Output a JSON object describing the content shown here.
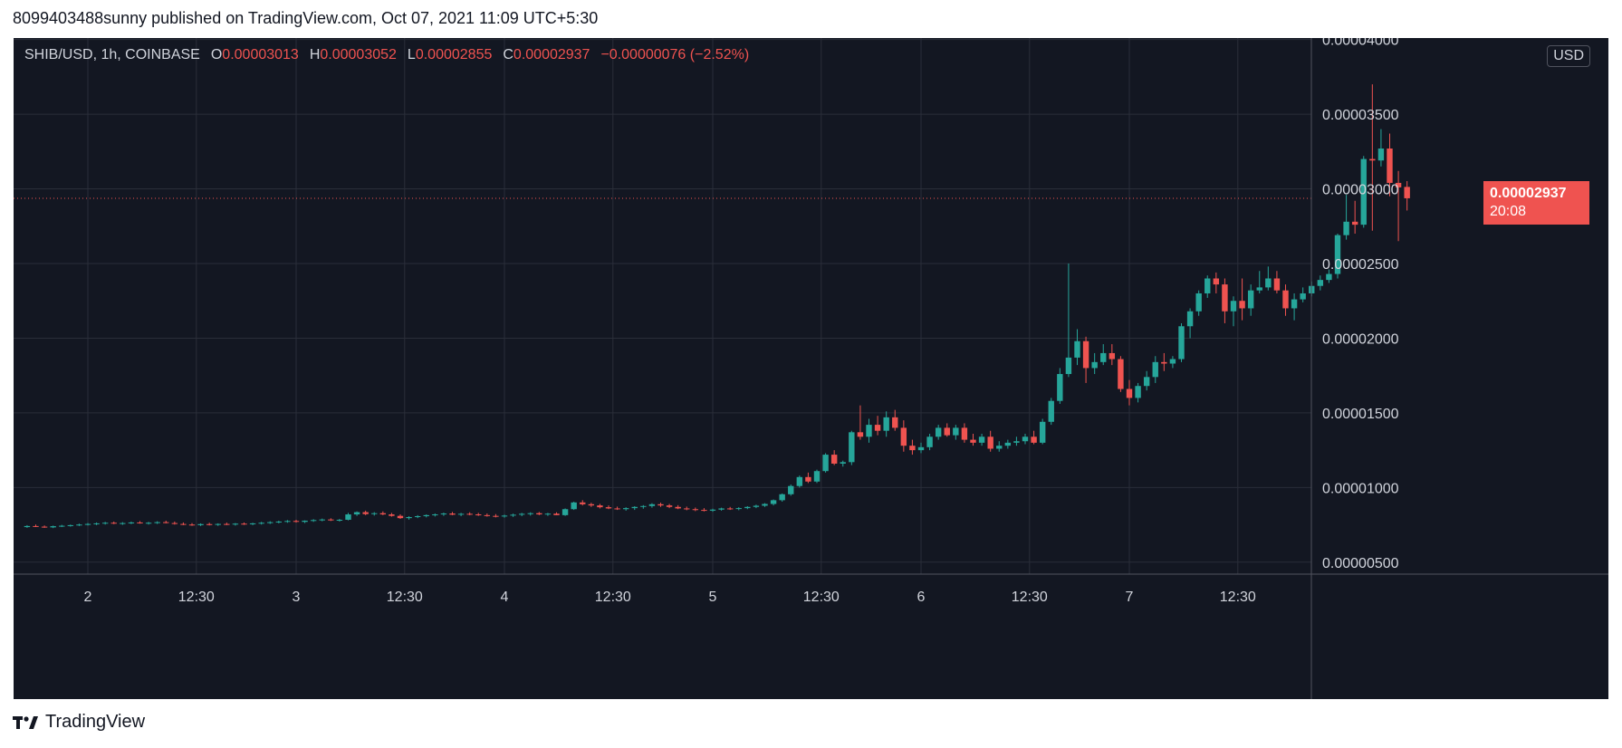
{
  "caption": "8099403488sunny published on TradingView.com, Oct 07, 2021 11:09 UTC+5:30",
  "footer": "TradingView",
  "legend": {
    "symbol": "SHIB/USD, 1h, COINBASE",
    "open_label": "O",
    "open": "0.00003013",
    "high_label": "H",
    "high": "0.00003052",
    "low_label": "L",
    "low": "0.00002855",
    "close_label": "C",
    "close": "0.00002937",
    "change": "−0.00000076 (−2.52%)"
  },
  "currency": "USD",
  "last_price": {
    "price": "0.00002937",
    "countdown": "20:08"
  },
  "colors": {
    "background": "#131722",
    "grid": "#2a2e39",
    "up": "#26a69a",
    "down": "#ef5350",
    "axis_text": "#d1d4dc"
  },
  "chart_data": {
    "type": "candlestick",
    "interval": "1h",
    "price_axis": {
      "range": [
        4.2e-06,
        4.01e-05
      ],
      "ticks": [
        5e-06,
        1e-05,
        1.5e-05,
        2e-05,
        2.5e-05,
        3e-05,
        3.5e-05,
        4e-05
      ],
      "tick_labels": [
        "0.00000500",
        "0.00001000",
        "0.00001500",
        "0.00002000",
        "0.00002500",
        "0.00003000",
        "0.00003500",
        "0.00004000"
      ]
    },
    "time_axis": {
      "tick_labels": [
        "2",
        "12:30",
        "3",
        "12:30",
        "4",
        "12:30",
        "5",
        "12:30",
        "6",
        "12:30",
        "7",
        "12:30"
      ],
      "tick_hours": [
        0,
        12.5,
        24,
        36.5,
        48,
        60.5,
        72,
        84.5,
        96,
        108.5,
        120,
        132.5
      ],
      "hours_before_first_tick": 7
    },
    "last_price": 2.937e-05,
    "candles_per_hour_ohlc": [
      [
        7.35e-06,
        7.48e-06,
        7.3e-06,
        7.42e-06
      ],
      [
        7.42e-06,
        7.52e-06,
        7.35e-06,
        7.38e-06
      ],
      [
        7.38e-06,
        7.46e-06,
        7.3e-06,
        7.33e-06
      ],
      [
        7.33e-06,
        7.45e-06,
        7.28e-06,
        7.41e-06
      ],
      [
        7.41e-06,
        7.5e-06,
        7.35e-06,
        7.44e-06
      ],
      [
        7.44e-06,
        7.52e-06,
        7.38e-06,
        7.48e-06
      ],
      [
        7.48e-06,
        7.58e-06,
        7.42e-06,
        7.52e-06
      ],
      [
        7.52e-06,
        7.62e-06,
        7.46e-06,
        7.56e-06
      ],
      [
        7.56e-06,
        7.66e-06,
        7.48e-06,
        7.6e-06
      ],
      [
        7.6e-06,
        7.7e-06,
        7.52e-06,
        7.64e-06
      ],
      [
        7.64e-06,
        7.72e-06,
        7.55e-06,
        7.58e-06
      ],
      [
        7.58e-06,
        7.68e-06,
        7.5e-06,
        7.62e-06
      ],
      [
        7.62e-06,
        7.72e-06,
        7.55e-06,
        7.66e-06
      ],
      [
        7.66e-06,
        7.75e-06,
        7.58e-06,
        7.6e-06
      ],
      [
        7.6e-06,
        7.7e-06,
        7.52e-06,
        7.64e-06
      ],
      [
        7.64e-06,
        7.74e-06,
        7.56e-06,
        7.68e-06
      ],
      [
        7.68e-06,
        7.78e-06,
        7.6e-06,
        7.62e-06
      ],
      [
        7.62e-06,
        7.72e-06,
        7.52e-06,
        7.56e-06
      ],
      [
        7.56e-06,
        7.66e-06,
        7.48e-06,
        7.52e-06
      ],
      [
        7.52e-06,
        7.62e-06,
        7.44e-06,
        7.48e-06
      ],
      [
        7.48e-06,
        7.6e-06,
        7.42e-06,
        7.55e-06
      ],
      [
        7.55e-06,
        7.64e-06,
        7.46e-06,
        7.5e-06
      ],
      [
        7.5e-06,
        7.6e-06,
        7.43e-06,
        7.56e-06
      ],
      [
        7.56e-06,
        7.65e-06,
        7.48e-06,
        7.52e-06
      ],
      [
        7.52e-06,
        7.62e-06,
        7.45e-06,
        7.58e-06
      ],
      [
        7.58e-06,
        7.66e-06,
        7.5e-06,
        7.54e-06
      ],
      [
        7.54e-06,
        7.64e-06,
        7.48e-06,
        7.6e-06
      ],
      [
        7.6e-06,
        7.7e-06,
        7.52e-06,
        7.64e-06
      ],
      [
        7.64e-06,
        7.74e-06,
        7.56e-06,
        7.68e-06
      ],
      [
        7.68e-06,
        7.78e-06,
        7.6e-06,
        7.72e-06
      ],
      [
        7.72e-06,
        7.82e-06,
        7.64e-06,
        7.76e-06
      ],
      [
        7.76e-06,
        7.84e-06,
        7.66e-06,
        7.7e-06
      ],
      [
        7.7e-06,
        7.8e-06,
        7.62e-06,
        7.78e-06
      ],
      [
        7.78e-06,
        7.88e-06,
        7.7e-06,
        7.82e-06
      ],
      [
        7.82e-06,
        7.92e-06,
        7.74e-06,
        7.86e-06
      ],
      [
        7.86e-06,
        7.94e-06,
        7.76e-06,
        7.8e-06
      ],
      [
        7.8e-06,
        7.9e-06,
        7.72e-06,
        7.84e-06
      ],
      [
        7.84e-06,
        8.3e-06,
        7.8e-06,
        8.2e-06
      ],
      [
        8.2e-06,
        8.4e-06,
        8.1e-06,
        8.35e-06
      ],
      [
        8.35e-06,
        8.45e-06,
        8.15e-06,
        8.22e-06
      ],
      [
        8.22e-06,
        8.35e-06,
        8.12e-06,
        8.28e-06
      ],
      [
        8.28e-06,
        8.4e-06,
        8.15e-06,
        8.2e-06
      ],
      [
        8.2e-06,
        8.3e-06,
        8.05e-06,
        8.1e-06
      ],
      [
        8.1e-06,
        8.2e-06,
        7.9e-06,
        7.95e-06
      ],
      [
        7.95e-06,
        8.08e-06,
        7.85e-06,
        8.02e-06
      ],
      [
        8.02e-06,
        8.15e-06,
        7.95e-06,
        8.08e-06
      ],
      [
        8.08e-06,
        8.2e-06,
        8e-06,
        8.15e-06
      ],
      [
        8.15e-06,
        8.26e-06,
        8.06e-06,
        8.2e-06
      ],
      [
        8.2e-06,
        8.32e-06,
        8.1e-06,
        8.26e-06
      ],
      [
        8.26e-06,
        8.36e-06,
        8.15e-06,
        8.18e-06
      ],
      [
        8.18e-06,
        8.3e-06,
        8.08e-06,
        8.24e-06
      ],
      [
        8.24e-06,
        8.34e-06,
        8.14e-06,
        8.2e-06
      ],
      [
        8.2e-06,
        8.3e-06,
        8.1e-06,
        8.15e-06
      ],
      [
        8.15e-06,
        8.26e-06,
        8.05e-06,
        8.1e-06
      ],
      [
        8.1e-06,
        8.22e-06,
        8e-06,
        8.06e-06
      ],
      [
        8.06e-06,
        8.18e-06,
        7.98e-06,
        8.12e-06
      ],
      [
        8.12e-06,
        8.25e-06,
        8.03e-06,
        8.18e-06
      ],
      [
        8.18e-06,
        8.3e-06,
        8.08e-06,
        8.24e-06
      ],
      [
        8.24e-06,
        8.34e-06,
        8.12e-06,
        8.28e-06
      ],
      [
        8.28e-06,
        8.36e-06,
        8.15e-06,
        8.2e-06
      ],
      [
        8.2e-06,
        8.3e-06,
        8.1e-06,
        8.25e-06
      ],
      [
        8.25e-06,
        8.34e-06,
        8.15e-06,
        8.15e-06
      ],
      [
        8.15e-06,
        8.6e-06,
        8.1e-06,
        8.55e-06
      ],
      [
        8.55e-06,
        9.05e-06,
        8.5e-06,
        9e-06
      ],
      [
        9e-06,
        9.15e-06,
        8.8e-06,
        8.88e-06
      ],
      [
        8.88e-06,
        8.98e-06,
        8.7e-06,
        8.8e-06
      ],
      [
        8.8e-06,
        8.9e-06,
        8.6e-06,
        8.68e-06
      ],
      [
        8.68e-06,
        8.8e-06,
        8.55e-06,
        8.6e-06
      ],
      [
        8.6e-06,
        8.72e-06,
        8.5e-06,
        8.55e-06
      ],
      [
        8.55e-06,
        8.68e-06,
        8.45e-06,
        8.62e-06
      ],
      [
        8.62e-06,
        8.75e-06,
        8.5e-06,
        8.7e-06
      ],
      [
        8.7e-06,
        8.82e-06,
        8.58e-06,
        8.76e-06
      ],
      [
        8.76e-06,
        8.95e-06,
        8.65e-06,
        8.88e-06
      ],
      [
        8.88e-06,
        8.98e-06,
        8.7e-06,
        8.8e-06
      ],
      [
        8.8e-06,
        8.9e-06,
        8.62e-06,
        8.7e-06
      ],
      [
        8.7e-06,
        8.82e-06,
        8.55e-06,
        8.6e-06
      ],
      [
        8.6e-06,
        8.72e-06,
        8.48e-06,
        8.55e-06
      ],
      [
        8.55e-06,
        8.66e-06,
        8.42e-06,
        8.5e-06
      ],
      [
        8.5e-06,
        8.62e-06,
        8.4e-06,
        8.45e-06
      ],
      [
        8.45e-06,
        8.58e-06,
        8.38e-06,
        8.52e-06
      ],
      [
        8.52e-06,
        8.65e-06,
        8.45e-06,
        8.6e-06
      ],
      [
        8.6e-06,
        8.7e-06,
        8.5e-06,
        8.56e-06
      ],
      [
        8.56e-06,
        8.68e-06,
        8.48e-06,
        8.62e-06
      ],
      [
        8.62e-06,
        8.75e-06,
        8.55e-06,
        8.7e-06
      ],
      [
        8.7e-06,
        8.85e-06,
        8.62e-06,
        8.78e-06
      ],
      [
        8.78e-06,
        8.95e-06,
        8.7e-06,
        8.9e-06
      ],
      [
        8.9e-06,
        9.2e-06,
        8.8e-06,
        9.15e-06
      ],
      [
        9.15e-06,
        9.6e-06,
        9.05e-06,
        9.55e-06
      ],
      [
        9.55e-06,
        1.02e-05,
        9.45e-06,
        1.01e-05
      ],
      [
        1.01e-05,
        1.08e-05,
        1e-05,
        1.07e-05
      ],
      [
        1.07e-05,
        1.1e-05,
        1.03e-05,
        1.04e-05
      ],
      [
        1.04e-05,
        1.12e-05,
        1.03e-05,
        1.11e-05
      ],
      [
        1.11e-05,
        1.23e-05,
        1.1e-05,
        1.22e-05
      ],
      [
        1.22e-05,
        1.25e-05,
        1.15e-05,
        1.16e-05
      ],
      [
        1.16e-05,
        1.18e-05,
        1.14e-05,
        1.17e-05
      ],
      [
        1.17e-05,
        1.38e-05,
        1.15e-05,
        1.37e-05
      ],
      [
        1.37e-05,
        1.55e-05,
        1.32e-05,
        1.34e-05
      ],
      [
        1.34e-05,
        1.46e-05,
        1.3e-05,
        1.42e-05
      ],
      [
        1.42e-05,
        1.48e-05,
        1.35e-05,
        1.38e-05
      ],
      [
        1.38e-05,
        1.51e-05,
        1.34e-05,
        1.47e-05
      ],
      [
        1.47e-05,
        1.52e-05,
        1.38e-05,
        1.4e-05
      ],
      [
        1.4e-05,
        1.45e-05,
        1.24e-05,
        1.28e-05
      ],
      [
        1.28e-05,
        1.32e-05,
        1.22e-05,
        1.25e-05
      ],
      [
        1.25e-05,
        1.3e-05,
        1.23e-05,
        1.27e-05
      ],
      [
        1.27e-05,
        1.36e-05,
        1.25e-05,
        1.34e-05
      ],
      [
        1.34e-05,
        1.42e-05,
        1.32e-05,
        1.4e-05
      ],
      [
        1.4e-05,
        1.43e-05,
        1.34e-05,
        1.35e-05
      ],
      [
        1.35e-05,
        1.42e-05,
        1.32e-05,
        1.4e-05
      ],
      [
        1.4e-05,
        1.43e-05,
        1.3e-05,
        1.32e-05
      ],
      [
        1.32e-05,
        1.36e-05,
        1.28e-05,
        1.3e-05
      ],
      [
        1.3e-05,
        1.36e-05,
        1.28e-05,
        1.34e-05
      ],
      [
        1.34e-05,
        1.38e-05,
        1.24e-05,
        1.26e-05
      ],
      [
        1.26e-05,
        1.31e-05,
        1.24e-05,
        1.28e-05
      ],
      [
        1.28e-05,
        1.32e-05,
        1.26e-05,
        1.3e-05
      ],
      [
        1.3e-05,
        1.34e-05,
        1.28e-05,
        1.31e-05
      ],
      [
        1.31e-05,
        1.36e-05,
        1.29e-05,
        1.34e-05
      ],
      [
        1.34e-05,
        1.38e-05,
        1.29e-05,
        1.3e-05
      ],
      [
        1.3e-05,
        1.46e-05,
        1.29e-05,
        1.44e-05
      ],
      [
        1.44e-05,
        1.6e-05,
        1.42e-05,
        1.58e-05
      ],
      [
        1.58e-05,
        1.8e-05,
        1.56e-05,
        1.76e-05
      ],
      [
        1.76e-05,
        2.5e-05,
        1.74e-05,
        1.87e-05
      ],
      [
        1.87e-05,
        2.06e-05,
        1.82e-05,
        1.98e-05
      ],
      [
        1.98e-05,
        2.01e-05,
        1.7e-05,
        1.8e-05
      ],
      [
        1.8e-05,
        1.9e-05,
        1.76e-05,
        1.84e-05
      ],
      [
        1.84e-05,
        1.96e-05,
        1.82e-05,
        1.9e-05
      ],
      [
        1.9e-05,
        1.96e-05,
        1.82e-05,
        1.86e-05
      ],
      [
        1.86e-05,
        1.88e-05,
        1.64e-05,
        1.66e-05
      ],
      [
        1.66e-05,
        1.72e-05,
        1.55e-05,
        1.6e-05
      ],
      [
        1.6e-05,
        1.7e-05,
        1.57e-05,
        1.68e-05
      ],
      [
        1.68e-05,
        1.78e-05,
        1.65e-05,
        1.74e-05
      ],
      [
        1.74e-05,
        1.88e-05,
        1.7e-05,
        1.84e-05
      ],
      [
        1.84e-05,
        1.9e-05,
        1.78e-05,
        1.83e-05
      ],
      [
        1.83e-05,
        1.88e-05,
        1.8e-05,
        1.86e-05
      ],
      [
        1.86e-05,
        2.1e-05,
        1.84e-05,
        2.08e-05
      ],
      [
        2.08e-05,
        2.2e-05,
        2e-05,
        2.18e-05
      ],
      [
        2.18e-05,
        2.32e-05,
        2.15e-05,
        2.3e-05
      ],
      [
        2.3e-05,
        2.42e-05,
        2.27e-05,
        2.4e-05
      ],
      [
        2.4e-05,
        2.44e-05,
        2.3e-05,
        2.36e-05
      ],
      [
        2.36e-05,
        2.4e-05,
        2.1e-05,
        2.18e-05
      ],
      [
        2.18e-05,
        2.28e-05,
        2.08e-05,
        2.25e-05
      ],
      [
        2.25e-05,
        2.4e-05,
        2.12e-05,
        2.2e-05
      ],
      [
        2.2e-05,
        2.36e-05,
        2.15e-05,
        2.32e-05
      ],
      [
        2.32e-05,
        2.45e-05,
        2.3e-05,
        2.34e-05
      ],
      [
        2.34e-05,
        2.48e-05,
        2.32e-05,
        2.4e-05
      ],
      [
        2.4e-05,
        2.45e-05,
        2.3e-05,
        2.32e-05
      ],
      [
        2.32e-05,
        2.36e-05,
        2.15e-05,
        2.2e-05
      ],
      [
        2.2e-05,
        2.3e-05,
        2.12e-05,
        2.26e-05
      ],
      [
        2.26e-05,
        2.34e-05,
        2.24e-05,
        2.3e-05
      ],
      [
        2.3e-05,
        2.38e-05,
        2.28e-05,
        2.35e-05
      ],
      [
        2.35e-05,
        2.42e-05,
        2.32e-05,
        2.39e-05
      ],
      [
        2.39e-05,
        2.46e-05,
        2.37e-05,
        2.43e-05
      ],
      [
        2.43e-05,
        2.7e-05,
        2.4e-05,
        2.69e-05
      ],
      [
        2.69e-05,
        2.96e-05,
        2.66e-05,
        2.78e-05
      ],
      [
        2.78e-05,
        2.92e-05,
        2.7e-05,
        2.76e-05
      ],
      [
        2.76e-05,
        3.22e-05,
        2.74e-05,
        3.2e-05
      ],
      [
        3.2e-05,
        3.7e-05,
        2.72e-05,
        3.19e-05
      ],
      [
        3.19e-05,
        3.4e-05,
        3.15e-05,
        3.27e-05
      ],
      [
        3.27e-05,
        3.37e-05,
        2.95e-05,
        3.04e-05
      ],
      [
        3.04e-05,
        3.12e-05,
        2.65e-05,
        3.01e-05
      ],
      [
        3.013e-05,
        3.052e-05,
        2.855e-05,
        2.937e-05
      ]
    ]
  }
}
